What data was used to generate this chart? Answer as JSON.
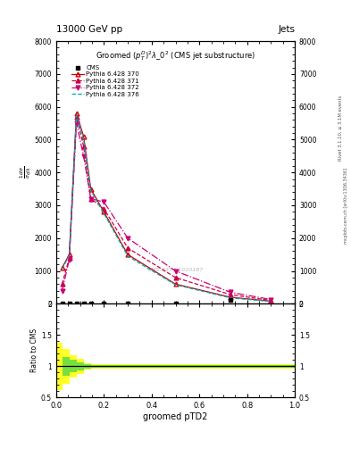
{
  "title_main": "13000 GeV pp",
  "title_right": "Jets",
  "plot_title": "Groomed $(p_T^D)^2\\lambda\\_0^2$ (CMS jet substructure)",
  "xlabel": "groomed pTD2",
  "ylabel_ratio": "Ratio to CMS",
  "watermark": "CMS-2354-1920187",
  "xlim": [
    0.0,
    1.0
  ],
  "ylim_main": [
    0,
    8000
  ],
  "ylim_ratio": [
    0.5,
    2.0
  ],
  "cms_x": [
    0.025,
    0.055,
    0.085,
    0.115,
    0.145,
    0.2,
    0.3,
    0.5,
    0.73
  ],
  "cms_y": [
    0,
    0,
    0,
    0,
    0,
    0,
    0,
    0,
    130
  ],
  "cms_color": "black",
  "py370_x": [
    0.025,
    0.055,
    0.085,
    0.115,
    0.145,
    0.2,
    0.3,
    0.5,
    0.73,
    0.9
  ],
  "py370_y": [
    1100,
    1500,
    5800,
    5100,
    3500,
    2800,
    1500,
    600,
    200,
    80
  ],
  "py370_color": "#cc0000",
  "py370_linestyle": "-",
  "py370_marker": "^",
  "py370_label": "Pythia 6.428 370",
  "py371_x": [
    0.025,
    0.055,
    0.085,
    0.115,
    0.145,
    0.2,
    0.3,
    0.5,
    0.73,
    0.9
  ],
  "py371_y": [
    600,
    1400,
    5700,
    4800,
    3200,
    2900,
    1700,
    800,
    280,
    100
  ],
  "py371_color": "#cc0044",
  "py371_linestyle": "--",
  "py371_marker": "^",
  "py371_label": "Pythia 6.428 371",
  "py372_x": [
    0.025,
    0.055,
    0.085,
    0.115,
    0.145,
    0.2,
    0.3,
    0.5,
    0.73,
    0.9
  ],
  "py372_y": [
    400,
    1350,
    5500,
    4500,
    3200,
    3100,
    2000,
    1000,
    350,
    130
  ],
  "py372_color": "#cc0077",
  "py372_linestyle": "-.",
  "py372_marker": "v",
  "py372_label": "Pythia 6.428 372",
  "py376_x": [
    0.025,
    0.055,
    0.085,
    0.115,
    0.145,
    0.2,
    0.3,
    0.5,
    0.73,
    0.9
  ],
  "py376_y": [
    1050,
    1480,
    5750,
    5000,
    3450,
    2750,
    1450,
    580,
    180,
    70
  ],
  "py376_color": "#00aaaa",
  "py376_linestyle": "--",
  "py376_marker": "None",
  "py376_label": "Pythia 6.428 376",
  "ratio_band_yellow_x": [
    0.0,
    0.025,
    0.025,
    0.055,
    0.055,
    0.085,
    0.085,
    0.115,
    0.115,
    0.145,
    0.145,
    1.0
  ],
  "ratio_band_yellow_lo": [
    0.62,
    0.62,
    0.72,
    0.72,
    0.82,
    0.82,
    0.88,
    0.88,
    0.95,
    0.95,
    0.97,
    0.97
  ],
  "ratio_band_yellow_hi": [
    1.38,
    1.38,
    1.28,
    1.28,
    1.18,
    1.18,
    1.12,
    1.12,
    1.05,
    1.05,
    1.03,
    1.03
  ],
  "ratio_band_green_x": [
    0.025,
    0.055,
    0.055,
    0.085,
    0.085,
    0.115,
    0.115,
    0.145,
    0.145,
    1.0
  ],
  "ratio_band_green_lo": [
    0.85,
    0.85,
    0.9,
    0.9,
    0.94,
    0.94,
    0.97,
    0.97,
    0.98,
    0.98
  ],
  "ratio_band_green_hi": [
    1.15,
    1.15,
    1.1,
    1.1,
    1.06,
    1.06,
    1.03,
    1.03,
    1.02,
    1.02
  ]
}
